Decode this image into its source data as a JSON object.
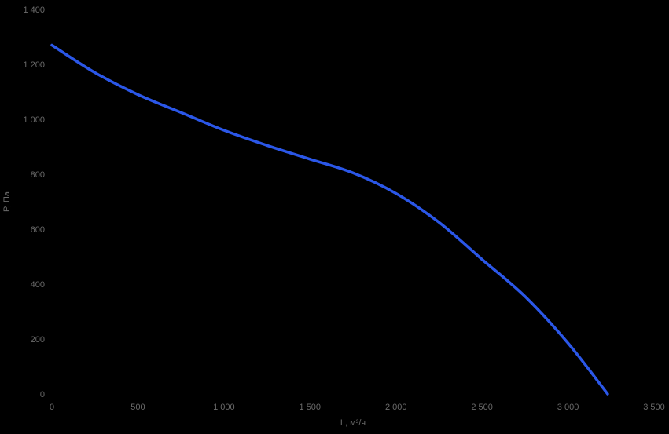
{
  "chart": {
    "background": "#000000",
    "text_color": "#6a6a6a",
    "accent_line_color": "#2b57e8"
  },
  "chart_data": {
    "type": "line",
    "title": "",
    "xlabel": "L, м³/ч",
    "ylabel": "P, Па",
    "xlim": [
      0,
      3500
    ],
    "ylim": [
      0,
      1400
    ],
    "x_ticks": [
      0,
      500,
      1000,
      1500,
      2000,
      2500,
      3000,
      3500
    ],
    "x_tick_labels": [
      "0",
      "500",
      "1 000",
      "1 500",
      "2 000",
      "2 500",
      "3 000",
      "3 500"
    ],
    "y_ticks": [
      0,
      200,
      400,
      600,
      800,
      1000,
      1200,
      1400
    ],
    "y_tick_labels": [
      "0",
      "200",
      "400",
      "600",
      "800",
      "1 000",
      "1 200",
      "1 400"
    ],
    "grid": false,
    "legend": false,
    "series": [
      {
        "color": "#2b57e8",
        "stroke_width": 3.5,
        "points": [
          [
            0,
            1270
          ],
          [
            250,
            1170
          ],
          [
            500,
            1090
          ],
          [
            750,
            1025
          ],
          [
            1000,
            960
          ],
          [
            1250,
            905
          ],
          [
            1500,
            855
          ],
          [
            1750,
            805
          ],
          [
            2000,
            730
          ],
          [
            2250,
            625
          ],
          [
            2500,
            490
          ],
          [
            2750,
            355
          ],
          [
            3000,
            185
          ],
          [
            3230,
            0
          ]
        ]
      }
    ]
  }
}
